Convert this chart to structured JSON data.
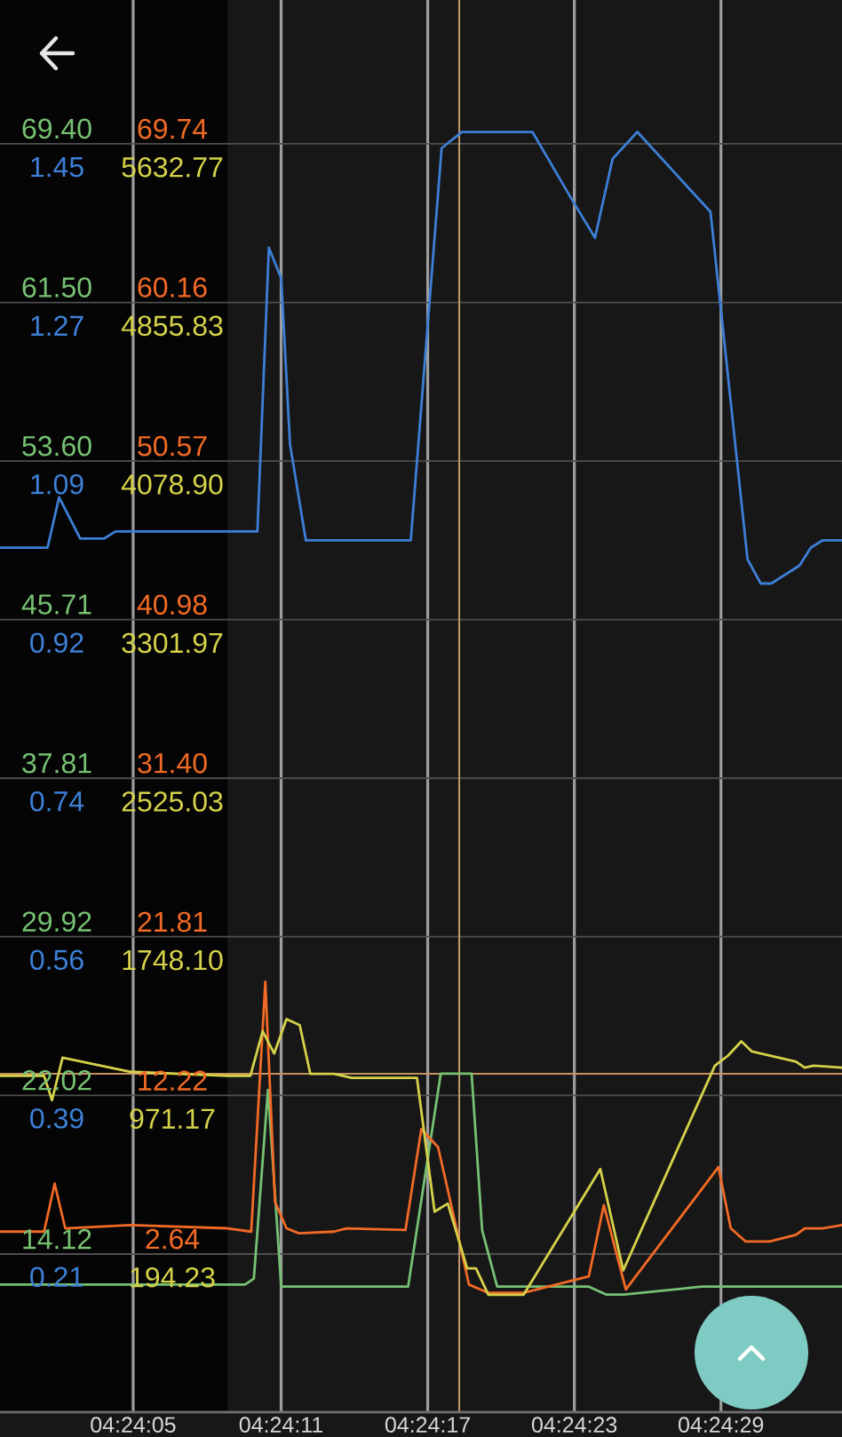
{
  "chart_data": [
    {
      "type": "line",
      "xlim": [
        4.39987,
        4.40943
      ],
      "xticks": [
        {
          "value": 4.401389,
          "label": "04:24:05"
        },
        {
          "value": 4.403056,
          "label": "04:24:11"
        },
        {
          "value": 4.404722,
          "label": "04:24:17"
        },
        {
          "value": 4.406389,
          "label": "04:24:23"
        },
        {
          "value": 4.408056,
          "label": "04:24:29"
        }
      ],
      "ylim": [
        6.25,
        76.56
      ],
      "yticks": [
        {
          "value": 69.4,
          "label": "69.40"
        },
        {
          "value": 61.5,
          "label": "61.50"
        },
        {
          "value": 53.6,
          "label": "53.60"
        },
        45.71,
        37.81,
        29.92,
        22.02,
        14.12
      ],
      "y2lim": [
        0.034,
        1.607
      ],
      "y2ticks": [
        {
          "value": 1.4465,
          "label": "1.45"
        },
        {
          "value": 1.2699,
          "label": "1.27"
        },
        {
          "value": 1.0933,
          "label": "1.09"
        },
        {
          "value": 0.9167,
          "label": "0.92"
        },
        {
          "value": 0.7401,
          "label": "0.74"
        },
        {
          "value": 0.5635,
          "label": "0.56"
        },
        {
          "value": 0.3869,
          "label": "0.39"
        },
        {
          "value": 0.2103,
          "label": "0.21"
        }
      ],
      "grid": true,
      "line_style": "solid",
      "bands": [
        {
          "axis": "x",
          "from": 4.39987,
          "to": 4.40245,
          "color": "#050505"
        }
      ],
      "ref_lines": [
        {
          "axis": "x",
          "value": 4.40508,
          "color": "#bf9a6e"
        },
        {
          "axis": "y",
          "value": 23.1,
          "color": "#c7925e"
        }
      ],
      "series": [
        {
          "color": "#76c172",
          "x": [
            4.39987,
            4.40265,
            4.40275,
            4.40291,
            4.40306,
            4.4045,
            4.40487,
            4.40522,
            4.40534,
            4.40551,
            4.40655,
            4.40675,
            4.40695,
            4.40783,
            4.40943
          ],
          "values": [
            12.6,
            12.6,
            12.9,
            22.3,
            12.5,
            12.5,
            23.1,
            23.1,
            15.3,
            12.5,
            12.5,
            12.1,
            12.1,
            12.5,
            12.5
          ]
        },
        {
          "color": "#3d7fd6",
          "axis": "y2",
          "x": [
            4.39987,
            4.40041,
            4.40054,
            4.40078,
            4.40105,
            4.40118,
            4.40279,
            4.40292,
            4.40306,
            4.40316,
            4.40334,
            4.40453,
            4.40488,
            4.40511,
            4.40591,
            4.40635,
            4.40662,
            4.40682,
            4.4071,
            4.40793,
            4.40835,
            4.4085,
            4.40862,
            4.40894,
            4.40907,
            4.4092,
            4.40943
          ],
          "values": [
            0.997,
            0.997,
            1.053,
            1.007,
            1.007,
            1.015,
            1.015,
            1.331,
            1.297,
            1.112,
            1.005,
            1.005,
            1.442,
            1.46,
            1.46,
            1.386,
            1.342,
            1.43,
            1.46,
            1.371,
            0.984,
            0.957,
            0.957,
            0.977,
            0.997,
            1.005,
            1.005
          ]
        }
      ]
    },
    {
      "type": "line",
      "xlim": [
        4.39987,
        4.40943
      ],
      "tick_labels": "y",
      "ylim": [
        -6.91,
        78.44
      ],
      "yticks": [
        69.74,
        60.16,
        50.57,
        40.98,
        {
          "value": 31.4,
          "label": "31.40"
        },
        21.81,
        12.22,
        2.64
      ],
      "y2lim": [
        -580,
        6338
      ],
      "y2ticks": [
        5632.77,
        4855.83,
        {
          "value": 4078.9,
          "label": "4078.90"
        },
        3301.97,
        2525.03,
        {
          "value": 1748.1,
          "label": "1748.10"
        },
        971.17,
        194.23
      ],
      "line_style": "solid",
      "series": [
        {
          "color": "#f26a25",
          "x": [
            4.39987,
            4.40037,
            4.40049,
            4.40061,
            4.40135,
            4.40245,
            4.40272,
            4.40288,
            4.40299,
            4.40312,
            4.40326,
            4.40366,
            4.4038,
            4.40447,
            4.40465,
            4.40484,
            4.40501,
            4.40519,
            4.40541,
            4.40581,
            4.40655,
            4.40672,
            4.40697,
            4.40802,
            4.40816,
            4.40833,
            4.4086,
            4.4089,
            4.409,
            4.4092,
            4.40943
          ],
          "values": [
            4.0,
            4.0,
            6.9,
            4.2,
            4.4,
            4.2,
            4.0,
            19.1,
            5.8,
            4.2,
            3.9,
            4.0,
            4.2,
            4.1,
            10.2,
            9.1,
            5.1,
            0.8,
            0.3,
            0.3,
            1.3,
            5.6,
            0.5,
            7.9,
            4.2,
            3.4,
            3.4,
            3.8,
            4.2,
            4.2,
            4.4
          ]
        },
        {
          "color": "#d5d24a",
          "axis": "y2",
          "x": [
            4.39987,
            4.40037,
            4.40046,
            4.40058,
            4.40135,
            4.40245,
            4.40271,
            4.40285,
            4.40298,
            4.40312,
            4.40327,
            4.40339,
            4.40366,
            4.40386,
            4.4046,
            4.4048,
            4.40495,
            4.40517,
            4.40527,
            4.40541,
            4.40581,
            4.40668,
            4.40694,
            4.40798,
            4.40813,
            4.40828,
            4.4084,
            4.4089,
            4.409,
            4.4091,
            4.40943
          ],
          "values": [
            1080,
            1080,
            960,
            1170,
            1100,
            1080,
            1080,
            1300,
            1190,
            1360,
            1330,
            1090,
            1090,
            1070,
            1070,
            410,
            450,
            130,
            130,
            0,
            0,
            620,
            120,
            1130,
            1180,
            1250,
            1200,
            1150,
            1120,
            1130,
            1120
          ]
        }
      ]
    }
  ]
}
